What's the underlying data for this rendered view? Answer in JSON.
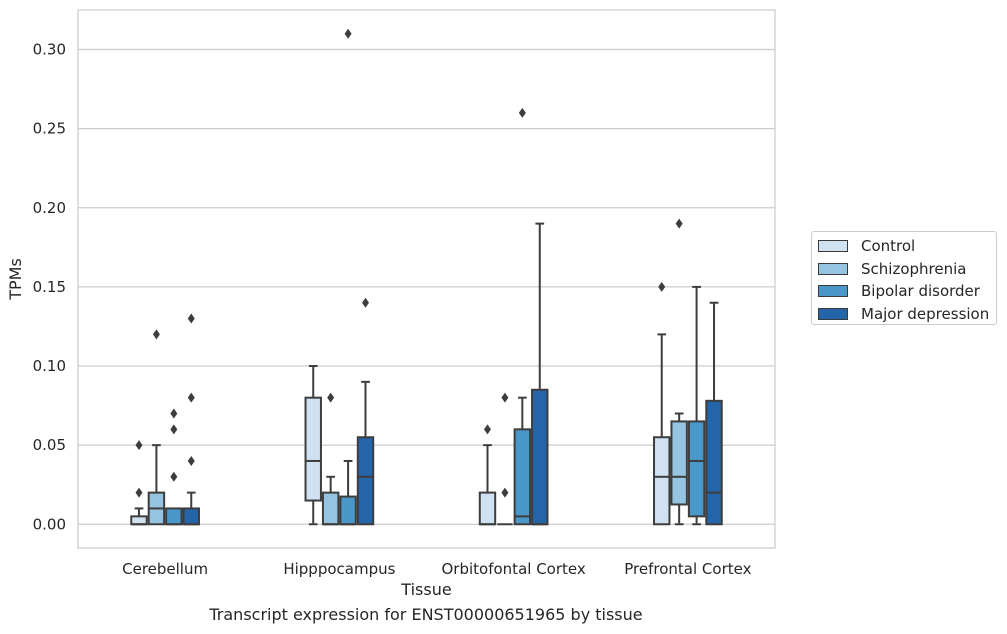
{
  "chart_data": {
    "type": "box",
    "caption": "Transcript expression for ENST00000651965 by tissue",
    "xlabel": "Tissue",
    "ylabel": "TPMs",
    "ylim": [
      -0.015,
      0.325
    ],
    "yticks": [
      0.0,
      0.05,
      0.1,
      0.15,
      0.2,
      0.25,
      0.3
    ],
    "ytick_labels": [
      "0.00",
      "0.05",
      "0.10",
      "0.15",
      "0.20",
      "0.25",
      "0.30"
    ],
    "grid": "horizontal",
    "legend_position": "right",
    "categories": [
      "Cerebellum",
      "Hipppocampus",
      "Orbitofontal Cortex",
      "Prefrontal Cortex"
    ],
    "series": [
      {
        "name": "Control",
        "color": "#d0e1f2",
        "boxes": [
          {
            "min": 0.0,
            "q1": 0.0,
            "median": 0.0,
            "q3": 0.005,
            "max": 0.01,
            "outliers": [
              0.02,
              0.05
            ]
          },
          {
            "min": 0.0,
            "q1": 0.015,
            "median": 0.04,
            "q3": 0.08,
            "max": 0.1,
            "outliers": []
          },
          {
            "min": 0.0,
            "q1": 0.0,
            "median": 0.0,
            "q3": 0.02,
            "max": 0.05,
            "outliers": [
              0.06
            ]
          },
          {
            "min": 0.0,
            "q1": 0.0,
            "median": 0.03,
            "q3": 0.055,
            "max": 0.12,
            "outliers": [
              0.15
            ]
          }
        ]
      },
      {
        "name": "Schizophrenia",
        "color": "#94c4df",
        "boxes": [
          {
            "min": 0.0,
            "q1": 0.0,
            "median": 0.01,
            "q3": 0.02,
            "max": 0.05,
            "outliers": [
              0.12
            ]
          },
          {
            "min": 0.0,
            "q1": 0.0,
            "median": 0.0,
            "q3": 0.02,
            "max": 0.03,
            "outliers": [
              0.08
            ]
          },
          {
            "min": 0.0,
            "q1": 0.0,
            "median": 0.0,
            "q3": 0.0,
            "max": 0.0,
            "outliers": [
              0.02,
              0.08
            ]
          },
          {
            "min": 0.0,
            "q1": 0.0125,
            "median": 0.03,
            "q3": 0.065,
            "max": 0.07,
            "outliers": [
              0.19
            ]
          }
        ]
      },
      {
        "name": "Bipolar disorder",
        "color": "#4a98c9",
        "boxes": [
          {
            "min": 0.0,
            "q1": 0.0,
            "median": 0.0,
            "q3": 0.01,
            "max": 0.01,
            "outliers": [
              0.03,
              0.06,
              0.07
            ]
          },
          {
            "min": 0.0,
            "q1": 0.0,
            "median": 0.0,
            "q3": 0.0175,
            "max": 0.04,
            "outliers": [
              0.31
            ]
          },
          {
            "min": 0.0,
            "q1": 0.0,
            "median": 0.005,
            "q3": 0.06,
            "max": 0.08,
            "outliers": [
              0.26
            ]
          },
          {
            "min": 0.0,
            "q1": 0.005,
            "median": 0.04,
            "q3": 0.065,
            "max": 0.15,
            "outliers": []
          }
        ]
      },
      {
        "name": "Major depression",
        "color": "#2464a8",
        "boxes": [
          {
            "min": 0.0,
            "q1": 0.0,
            "median": 0.0,
            "q3": 0.01,
            "max": 0.02,
            "outliers": [
              0.04,
              0.08,
              0.13
            ]
          },
          {
            "min": 0.0,
            "q1": 0.0,
            "median": 0.03,
            "q3": 0.055,
            "max": 0.09,
            "outliers": [
              0.14
            ]
          },
          {
            "min": 0.0,
            "q1": 0.0,
            "median": 0.0,
            "q3": 0.085,
            "max": 0.19,
            "outliers": []
          },
          {
            "min": 0.0,
            "q1": 0.0,
            "median": 0.02,
            "q3": 0.078,
            "max": 0.14,
            "outliers": []
          }
        ]
      }
    ]
  }
}
